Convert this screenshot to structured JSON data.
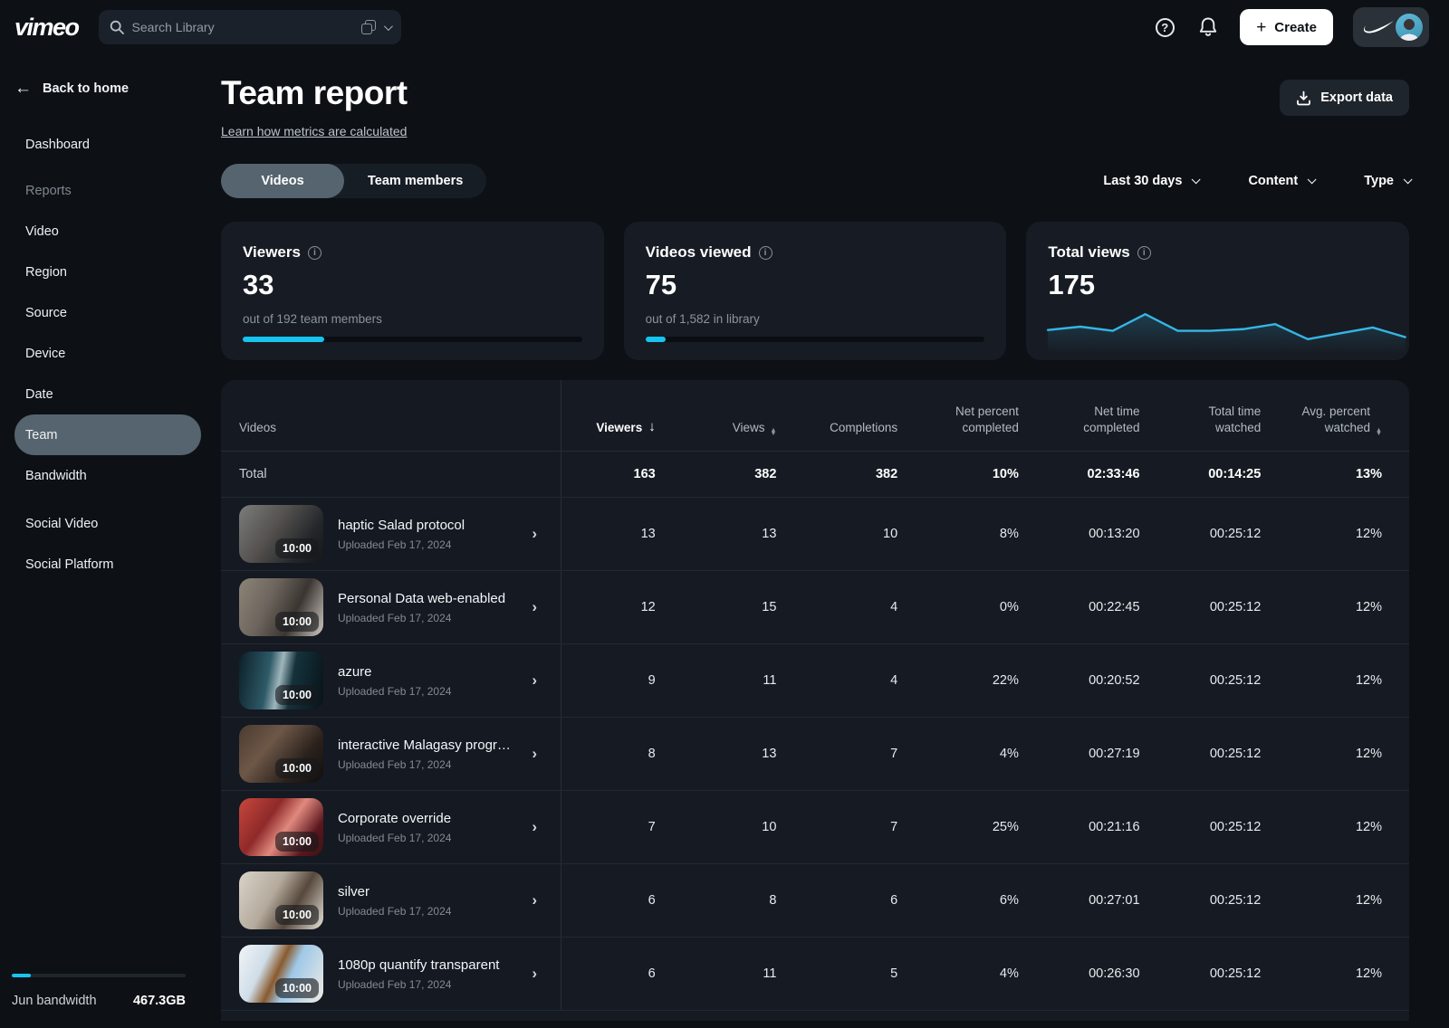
{
  "colors": {
    "accent_cyan": "#17c4ef",
    "spark_line": "#35b6e5",
    "page_bg": "#0d1116",
    "card_bg": "#171c24",
    "active_pill": "#55646e"
  },
  "topbar": {
    "logo": "vimeo",
    "search_placeholder": "Search Library",
    "create_label": "Create",
    "create_plus": "+",
    "help_glyph": "?"
  },
  "sidebar": {
    "back_label": "Back to home",
    "back_arrow": "←",
    "items": [
      {
        "label": "Dashboard",
        "type": "item"
      },
      {
        "label": "Reports",
        "type": "section"
      },
      {
        "label": "Video",
        "type": "item"
      },
      {
        "label": "Region",
        "type": "item"
      },
      {
        "label": "Source",
        "type": "item"
      },
      {
        "label": "Device",
        "type": "item"
      },
      {
        "label": "Date",
        "type": "item"
      },
      {
        "label": "Team",
        "type": "item",
        "active": true
      },
      {
        "label": "Bandwidth",
        "type": "item"
      },
      {
        "label": "Social Video",
        "type": "item",
        "gap": true
      },
      {
        "label": "Social Platform",
        "type": "item"
      }
    ],
    "bandwidth": {
      "label": "Jun bandwidth",
      "value": "467.3GB",
      "percent": 11
    }
  },
  "header": {
    "title": "Team report",
    "link": "Learn how metrics are calculated",
    "export_label": "Export data"
  },
  "tabs": [
    {
      "label": "Videos",
      "active": true
    },
    {
      "label": "Team members",
      "active": false
    }
  ],
  "filters": [
    {
      "label": "Last 30 days"
    },
    {
      "label": "Content"
    },
    {
      "label": "Type"
    }
  ],
  "cards": [
    {
      "title": "Viewers",
      "value": "33",
      "subtitle": "out of 192 team members",
      "progress_percent": 24
    },
    {
      "title": "Videos viewed",
      "value": "75",
      "subtitle": "out of 1,582 in library",
      "progress_percent": 6
    },
    {
      "title": "Total views",
      "value": "175",
      "sparkline": true
    }
  ],
  "chart_data": {
    "type": "line",
    "title": "Total views",
    "series": [
      {
        "name": "views",
        "values": [
          42,
          50,
          40,
          80,
          40,
          40,
          44,
          56,
          20,
          34,
          48,
          25
        ]
      }
    ],
    "x_labels": [],
    "ylim": [
      0,
      100
    ],
    "grid": false,
    "axes_visible": false,
    "line_color": "#35b6e5",
    "note": "sparkline without axes; values estimated from pixel heights"
  },
  "table": {
    "columns": [
      {
        "label": "Videos"
      },
      {
        "label": "Viewers",
        "sort": "desc"
      },
      {
        "label": "Views",
        "sort": "both"
      },
      {
        "label": "Completions"
      },
      {
        "label": "Net percent completed"
      },
      {
        "label": "Net time completed"
      },
      {
        "label": "Total time watched"
      },
      {
        "label": "Avg. percent watched",
        "sort": "both"
      }
    ],
    "sort_desc_glyph": "↓",
    "total": {
      "label": "Total",
      "viewers": "163",
      "views": "382",
      "completions": "382",
      "net_percent": "10%",
      "net_time": "02:33:46",
      "total_time": "00:14:25",
      "avg_percent": "13%"
    },
    "rows": [
      {
        "title": "haptic Salad protocol",
        "uploaded": "Uploaded Feb 17, 2024",
        "duration": "10:00",
        "viewers": "13",
        "views": "13",
        "completions": "10",
        "net_percent": "8%",
        "net_time": "00:13:20",
        "total_time": "00:25:12",
        "avg_percent": "12%",
        "thumb": "linear-gradient(125deg,#7b7d7c 0%,#55524f 40%,#23262a 75%,#151619 100%)"
      },
      {
        "title": "Personal Data web-enabled",
        "uploaded": "Uploaded Feb 17, 2024",
        "duration": "10:00",
        "viewers": "12",
        "views": "15",
        "completions": "4",
        "net_percent": "0%",
        "net_time": "00:22:45",
        "total_time": "00:25:12",
        "avg_percent": "12%",
        "thumb": "linear-gradient(115deg,#8d8478 0%,#6e665e 35%,#3a3531 65%,#cfc9c2 100%)"
      },
      {
        "title": "azure",
        "uploaded": "Uploaded Feb 17, 2024",
        "duration": "10:00",
        "viewers": "9",
        "views": "11",
        "completions": "4",
        "net_percent": "22%",
        "net_time": "00:20:52",
        "total_time": "00:25:12",
        "avg_percent": "12%",
        "thumb": "linear-gradient(100deg,#0c1f28 0%,#2e5a68 35%,#9fb6bc 48%,#15323c 62%,#081318 100%)"
      },
      {
        "title": "interactive Malagasy programmi...",
        "uploaded": "Uploaded Feb 17, 2024",
        "duration": "10:00",
        "viewers": "8",
        "views": "13",
        "completions": "7",
        "net_percent": "4%",
        "net_time": "00:27:19",
        "total_time": "00:25:12",
        "avg_percent": "12%",
        "thumb": "linear-gradient(130deg,#4a3b31 0%,#6d5747 35%,#2a211c 70%,#120e0c 100%)"
      },
      {
        "title": "Corporate override",
        "uploaded": "Uploaded Feb 17, 2024",
        "duration": "10:00",
        "viewers": "7",
        "views": "10",
        "completions": "7",
        "net_percent": "25%",
        "net_time": "00:21:16",
        "total_time": "00:25:12",
        "avg_percent": "12%",
        "thumb": "linear-gradient(125deg,#c8473c 0%,#8e2a2a 35%,#e0897e 55%,#5b161d 80%,#3c1214 100%)"
      },
      {
        "title": "silver",
        "uploaded": "Uploaded Feb 17, 2024",
        "duration": "10:00",
        "viewers": "6",
        "views": "8",
        "completions": "6",
        "net_percent": "6%",
        "net_time": "00:27:01",
        "total_time": "00:25:12",
        "avg_percent": "12%",
        "thumb": "linear-gradient(120deg,#d9d3c9 0%,#b4aa9c 40%,#56483c 65%,#e7e2d8 100%)"
      },
      {
        "title": "1080p quantify transparent",
        "uploaded": "Uploaded Feb 17, 2024",
        "duration": "10:00",
        "viewers": "6",
        "views": "11",
        "completions": "5",
        "net_percent": "4%",
        "net_time": "00:26:30",
        "total_time": "00:25:12",
        "avg_percent": "12%",
        "thumb": "linear-gradient(115deg,#f2f4f6 0%,#cfdde8 30%,#8a5a2e 46%,#9fc8e8 60%,#efece4 100%)"
      }
    ],
    "partial_row_visible": true
  }
}
